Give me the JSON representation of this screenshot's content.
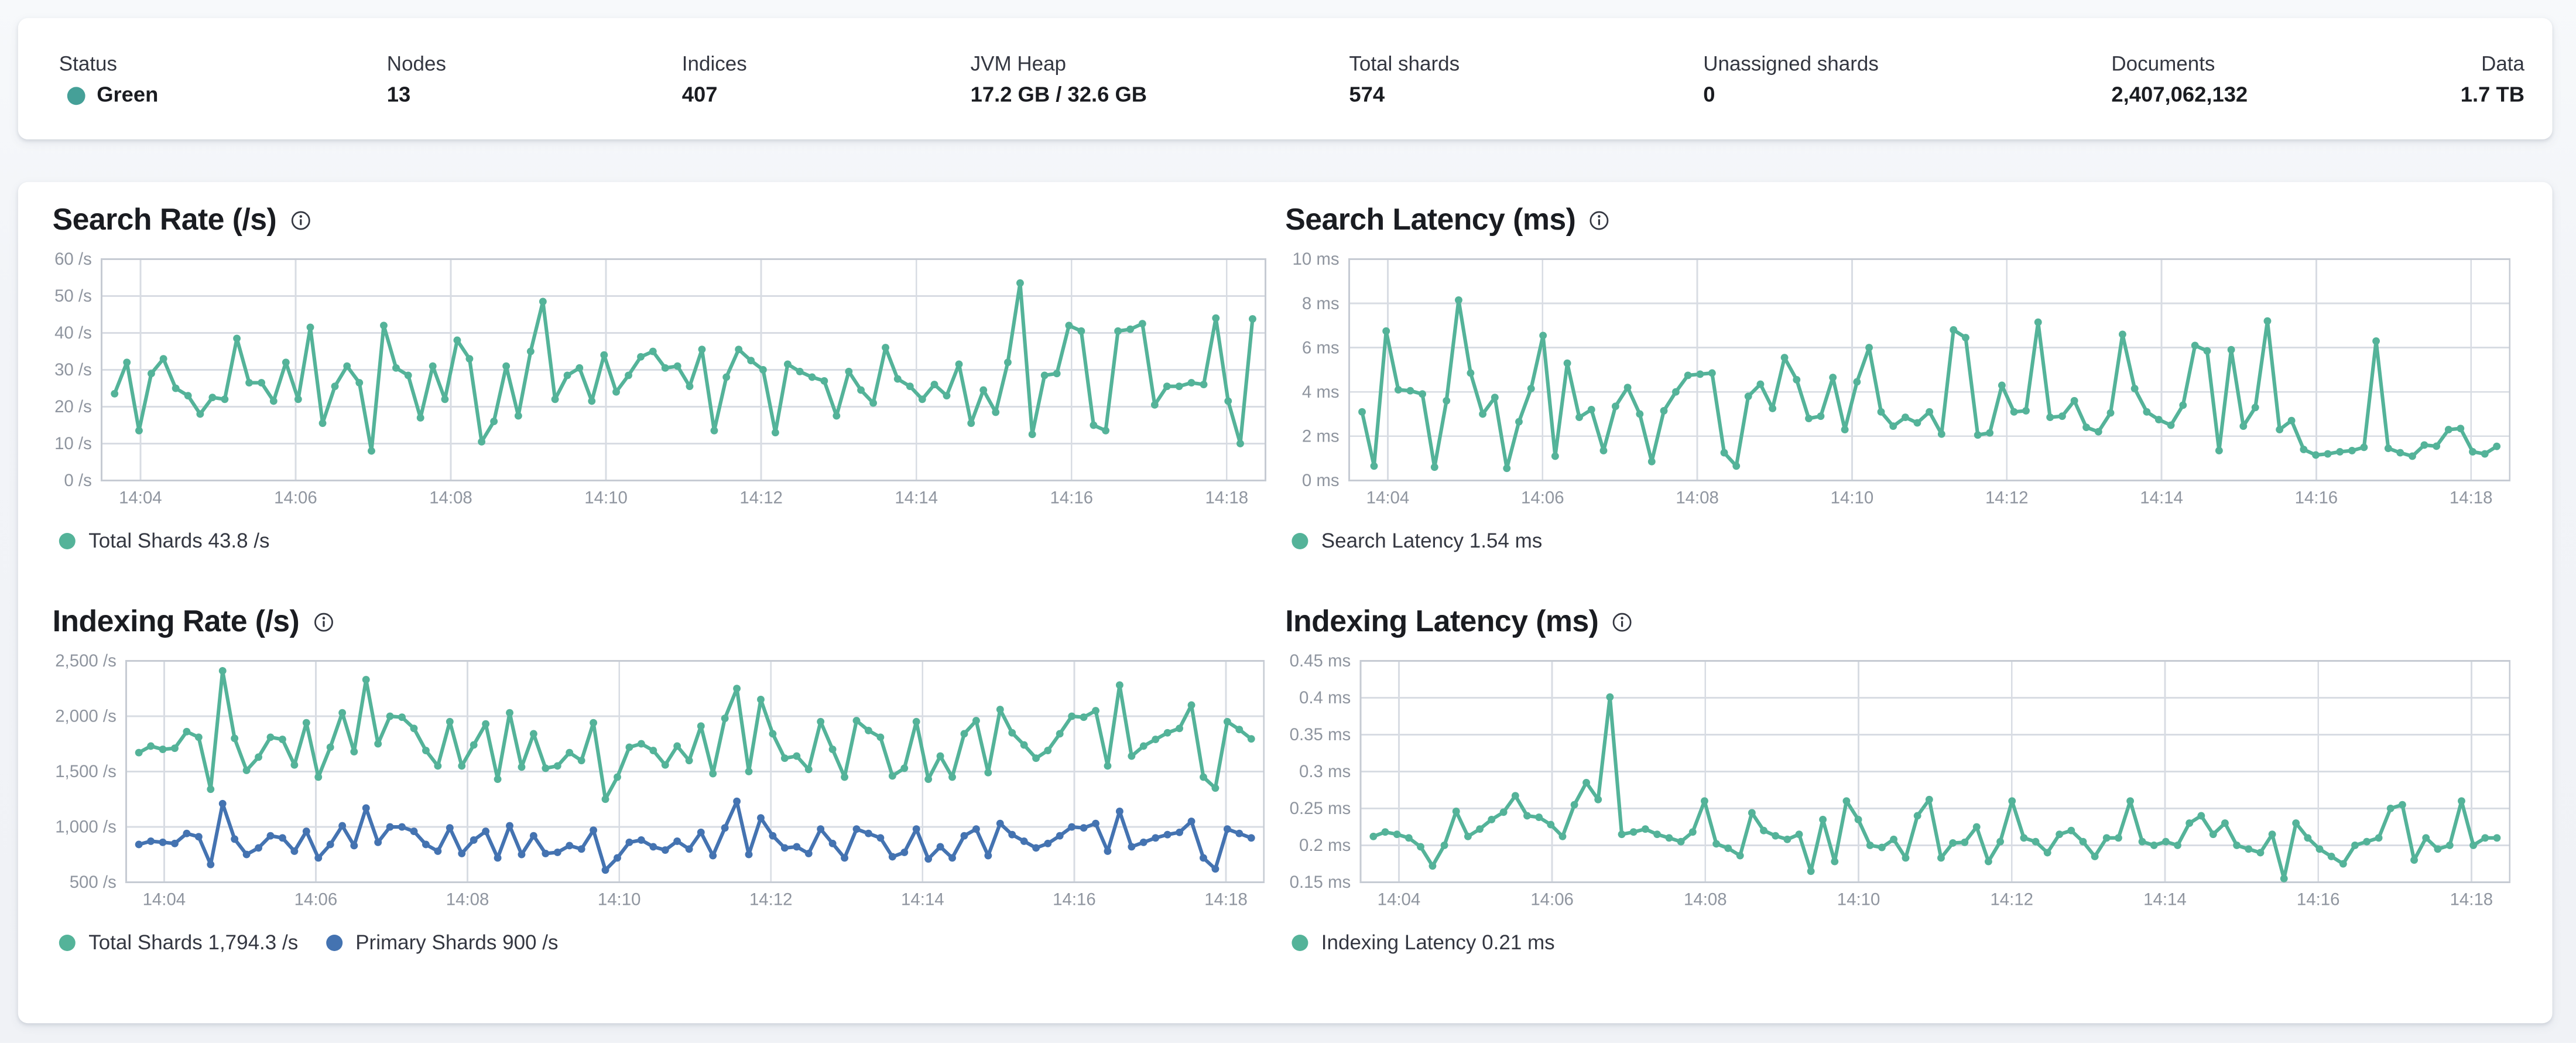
{
  "summary": {
    "items": [
      {
        "label": "Status",
        "value": "Green",
        "dot_color": "#45a098"
      },
      {
        "label": "Nodes",
        "value": "13"
      },
      {
        "label": "Indices",
        "value": "407"
      },
      {
        "label": "JVM Heap",
        "value": "17.2 GB / 32.6 GB"
      },
      {
        "label": "Total shards",
        "value": "574"
      },
      {
        "label": "Unassigned shards",
        "value": "0"
      },
      {
        "label": "Documents",
        "value": "2,407,062,132"
      },
      {
        "label": "Data",
        "value": "1.7 TB"
      }
    ]
  },
  "colors": {
    "teal": "#54b399",
    "blue": "#4473b1",
    "grid": "#d8dce3",
    "frame": "#c6cbd3",
    "axis_text": "#8f959f"
  },
  "chart_data": [
    {
      "id": "search-rate",
      "type": "line",
      "title": "Search Rate (/s)",
      "ylim": [
        0,
        60
      ],
      "y_ticks": [
        {
          "v": 0,
          "label": "0 /s"
        },
        {
          "v": 10,
          "label": "10 /s"
        },
        {
          "v": 20,
          "label": "20 /s"
        },
        {
          "v": 30,
          "label": "30 /s"
        },
        {
          "v": 40,
          "label": "40 /s"
        },
        {
          "v": 50,
          "label": "50 /s"
        },
        {
          "v": 60,
          "label": "60 /s"
        }
      ],
      "x_ticks": [
        "14:04",
        "14:06",
        "14:08",
        "14:10",
        "14:12",
        "14:14",
        "14:16",
        "14:18"
      ],
      "legend_position": "bottom",
      "grid": true,
      "series": [
        {
          "name": "Total Shards",
          "legend": "Total Shards 43.8 /s",
          "color": "#54b399",
          "values": [
            23.5,
            32,
            13.5,
            29,
            33,
            25,
            23,
            18,
            22.5,
            22,
            38.5,
            26.5,
            26.5,
            21.5,
            32,
            22,
            41.5,
            15.5,
            25.5,
            31,
            26.5,
            8,
            42,
            30.5,
            28.5,
            17,
            31,
            22,
            38,
            33,
            10.5,
            16,
            31,
            17.5,
            35,
            48.5,
            22,
            28.5,
            30.5,
            21.5,
            34,
            24,
            28.5,
            33.5,
            35,
            30.5,
            31,
            25.5,
            35.5,
            13.5,
            28,
            35.5,
            32.5,
            30,
            13,
            31.5,
            29.5,
            28,
            27,
            17.5,
            29.5,
            24.5,
            21,
            36,
            27.5,
            25.5,
            22,
            26,
            23,
            31.5,
            15.5,
            24.5,
            18.5,
            32,
            53.5,
            12.5,
            28.5,
            29,
            42,
            40.5,
            15,
            13.5,
            40.5,
            41,
            42.5,
            20.5,
            25.5,
            25.5,
            26.5,
            26,
            44,
            21.5,
            10,
            43.8
          ]
        }
      ]
    },
    {
      "id": "search-latency",
      "type": "line",
      "title": "Search Latency (ms)",
      "ylim": [
        0,
        10
      ],
      "y_ticks": [
        {
          "v": 0,
          "label": "0 ms"
        },
        {
          "v": 2,
          "label": "2 ms"
        },
        {
          "v": 4,
          "label": "4 ms"
        },
        {
          "v": 6,
          "label": "6 ms"
        },
        {
          "v": 8,
          "label": "8 ms"
        },
        {
          "v": 10,
          "label": "10 ms"
        }
      ],
      "x_ticks": [
        "14:04",
        "14:06",
        "14:08",
        "14:10",
        "14:12",
        "14:14",
        "14:16",
        "14:18"
      ],
      "legend_position": "bottom",
      "grid": true,
      "series": [
        {
          "name": "Search Latency",
          "legend": "Search Latency 1.54 ms",
          "color": "#54b399",
          "values": [
            3.1,
            0.65,
            6.75,
            4.1,
            4.05,
            3.9,
            0.6,
            3.6,
            8.15,
            4.85,
            3.0,
            3.75,
            0.55,
            2.65,
            4.15,
            6.55,
            1.1,
            5.3,
            2.85,
            3.2,
            1.35,
            3.35,
            4.2,
            3.0,
            0.85,
            3.15,
            4.0,
            4.75,
            4.8,
            4.85,
            1.25,
            0.65,
            3.8,
            4.35,
            3.25,
            5.55,
            4.55,
            2.8,
            2.9,
            4.65,
            2.3,
            4.45,
            6.0,
            3.1,
            2.45,
            2.85,
            2.6,
            3.1,
            2.1,
            6.8,
            6.45,
            2.05,
            2.15,
            4.3,
            3.1,
            3.15,
            7.15,
            2.85,
            2.9,
            3.6,
            2.4,
            2.2,
            3.05,
            6.6,
            4.15,
            3.1,
            2.75,
            2.5,
            3.4,
            6.1,
            5.85,
            1.35,
            5.9,
            2.45,
            3.3,
            7.2,
            2.3,
            2.7,
            1.4,
            1.15,
            1.2,
            1.3,
            1.35,
            1.5,
            6.3,
            1.45,
            1.25,
            1.1,
            1.6,
            1.55,
            2.3,
            2.35,
            1.3,
            1.2,
            1.54
          ]
        }
      ]
    },
    {
      "id": "indexing-rate",
      "type": "line",
      "title": "Indexing Rate (/s)",
      "ylim": [
        500,
        2500
      ],
      "y_ticks": [
        {
          "v": 500,
          "label": "500 /s"
        },
        {
          "v": 1000,
          "label": "1,000 /s"
        },
        {
          "v": 1500,
          "label": "1,500 /s"
        },
        {
          "v": 2000,
          "label": "2,000 /s"
        },
        {
          "v": 2500,
          "label": "2,500 /s"
        }
      ],
      "x_ticks": [
        "14:04",
        "14:06",
        "14:08",
        "14:10",
        "14:12",
        "14:14",
        "14:16",
        "14:18"
      ],
      "legend_position": "bottom",
      "grid": true,
      "series": [
        {
          "name": "Total Shards",
          "legend": "Total Shards 1,794.3 /s",
          "color": "#54b399",
          "values": [
            1670,
            1730,
            1700,
            1710,
            1860,
            1810,
            1340,
            2410,
            1800,
            1510,
            1630,
            1810,
            1790,
            1560,
            1940,
            1450,
            1720,
            2030,
            1680,
            2330,
            1750,
            2000,
            1990,
            1890,
            1690,
            1550,
            1950,
            1550,
            1740,
            1930,
            1430,
            2030,
            1540,
            1840,
            1530,
            1550,
            1670,
            1600,
            1940,
            1250,
            1450,
            1720,
            1750,
            1690,
            1560,
            1730,
            1600,
            1910,
            1480,
            1980,
            2250,
            1500,
            2150,
            1840,
            1620,
            1640,
            1520,
            1950,
            1700,
            1450,
            1960,
            1870,
            1810,
            1460,
            1530,
            1950,
            1430,
            1640,
            1450,
            1840,
            1960,
            1490,
            2060,
            1850,
            1740,
            1620,
            1690,
            1840,
            2000,
            1990,
            2050,
            1550,
            2280,
            1640,
            1730,
            1790,
            1850,
            1890,
            2100,
            1450,
            1350,
            1950,
            1880,
            1794.3
          ]
        },
        {
          "name": "Primary Shards",
          "legend": "Primary Shards 900 /s",
          "color": "#4473b1",
          "values": [
            840,
            870,
            860,
            850,
            940,
            910,
            660,
            1210,
            890,
            750,
            810,
            920,
            900,
            780,
            960,
            720,
            840,
            1010,
            830,
            1170,
            860,
            1000,
            1000,
            960,
            840,
            780,
            990,
            760,
            880,
            960,
            720,
            1010,
            750,
            920,
            760,
            770,
            830,
            800,
            970,
            610,
            720,
            860,
            880,
            820,
            790,
            870,
            800,
            950,
            740,
            990,
            1230,
            750,
            1080,
            920,
            810,
            820,
            760,
            980,
            850,
            720,
            980,
            940,
            900,
            730,
            770,
            980,
            710,
            820,
            720,
            920,
            980,
            740,
            1030,
            930,
            870,
            810,
            850,
            920,
            1000,
            990,
            1030,
            780,
            1140,
            820,
            860,
            900,
            930,
            950,
            1050,
            720,
            620,
            980,
            940,
            900
          ]
        }
      ]
    },
    {
      "id": "indexing-latency",
      "type": "line",
      "title": "Indexing Latency (ms)",
      "ylim": [
        0.15,
        0.45
      ],
      "y_ticks": [
        {
          "v": 0.15,
          "label": "0.15 ms"
        },
        {
          "v": 0.2,
          "label": "0.2 ms"
        },
        {
          "v": 0.25,
          "label": "0.25 ms"
        },
        {
          "v": 0.3,
          "label": "0.3 ms"
        },
        {
          "v": 0.35,
          "label": "0.35 ms"
        },
        {
          "v": 0.4,
          "label": "0.4 ms"
        },
        {
          "v": 0.45,
          "label": "0.45 ms"
        }
      ],
      "x_ticks": [
        "14:04",
        "14:06",
        "14:08",
        "14:10",
        "14:12",
        "14:14",
        "14:16",
        "14:18"
      ],
      "legend_position": "bottom",
      "grid": true,
      "series": [
        {
          "name": "Indexing Latency",
          "legend": "Indexing Latency 0.21 ms",
          "color": "#54b399",
          "values": [
            0.212,
            0.218,
            0.215,
            0.21,
            0.198,
            0.172,
            0.2,
            0.246,
            0.212,
            0.222,
            0.235,
            0.245,
            0.267,
            0.24,
            0.238,
            0.228,
            0.212,
            0.255,
            0.285,
            0.262,
            0.401,
            0.215,
            0.218,
            0.222,
            0.215,
            0.21,
            0.205,
            0.218,
            0.26,
            0.202,
            0.196,
            0.186,
            0.244,
            0.22,
            0.213,
            0.208,
            0.215,
            0.165,
            0.235,
            0.178,
            0.26,
            0.235,
            0.2,
            0.197,
            0.208,
            0.183,
            0.24,
            0.262,
            0.183,
            0.203,
            0.204,
            0.225,
            0.178,
            0.205,
            0.26,
            0.21,
            0.205,
            0.19,
            0.215,
            0.22,
            0.205,
            0.185,
            0.21,
            0.21,
            0.26,
            0.205,
            0.2,
            0.205,
            0.2,
            0.23,
            0.24,
            0.215,
            0.23,
            0.2,
            0.195,
            0.19,
            0.215,
            0.155,
            0.23,
            0.21,
            0.195,
            0.185,
            0.175,
            0.2,
            0.205,
            0.21,
            0.25,
            0.255,
            0.18,
            0.21,
            0.195,
            0.2,
            0.26,
            0.2,
            0.21,
            0.21
          ]
        }
      ]
    }
  ]
}
